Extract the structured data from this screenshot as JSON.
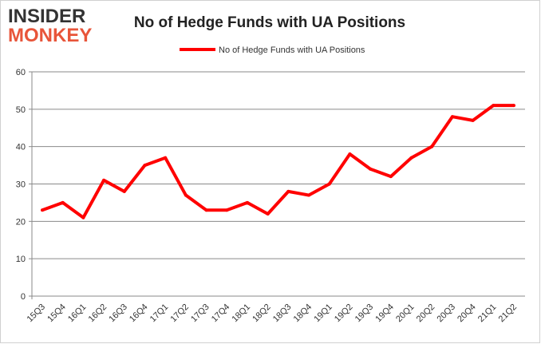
{
  "logo": {
    "line1": "INSIDER",
    "line2": "MONKEY"
  },
  "chart_data": {
    "type": "line",
    "title": "No of Hedge Funds with UA Positions",
    "legend": {
      "position": "top",
      "entries": [
        "No of Hedge Funds with UA Positions"
      ]
    },
    "categories": [
      "15Q3",
      "15Q4",
      "16Q1",
      "16Q2",
      "16Q3",
      "16Q4",
      "17Q1",
      "17Q2",
      "17Q3",
      "17Q4",
      "18Q1",
      "18Q2",
      "18Q3",
      "18Q4",
      "19Q1",
      "19Q2",
      "19Q3",
      "19Q4",
      "20Q1",
      "20Q2",
      "20Q3",
      "20Q4",
      "21Q1",
      "21Q2"
    ],
    "series": [
      {
        "name": "No of Hedge Funds with UA Positions",
        "color": "#ff0000",
        "values": [
          23,
          25,
          21,
          31,
          28,
          35,
          37,
          27,
          23,
          23,
          25,
          22,
          28,
          27,
          30,
          38,
          34,
          32,
          37,
          40,
          48,
          47,
          51,
          51
        ]
      }
    ],
    "ylim": [
      0,
      60
    ],
    "yticks": [
      0,
      10,
      20,
      30,
      40,
      50,
      60
    ],
    "grid": true
  }
}
